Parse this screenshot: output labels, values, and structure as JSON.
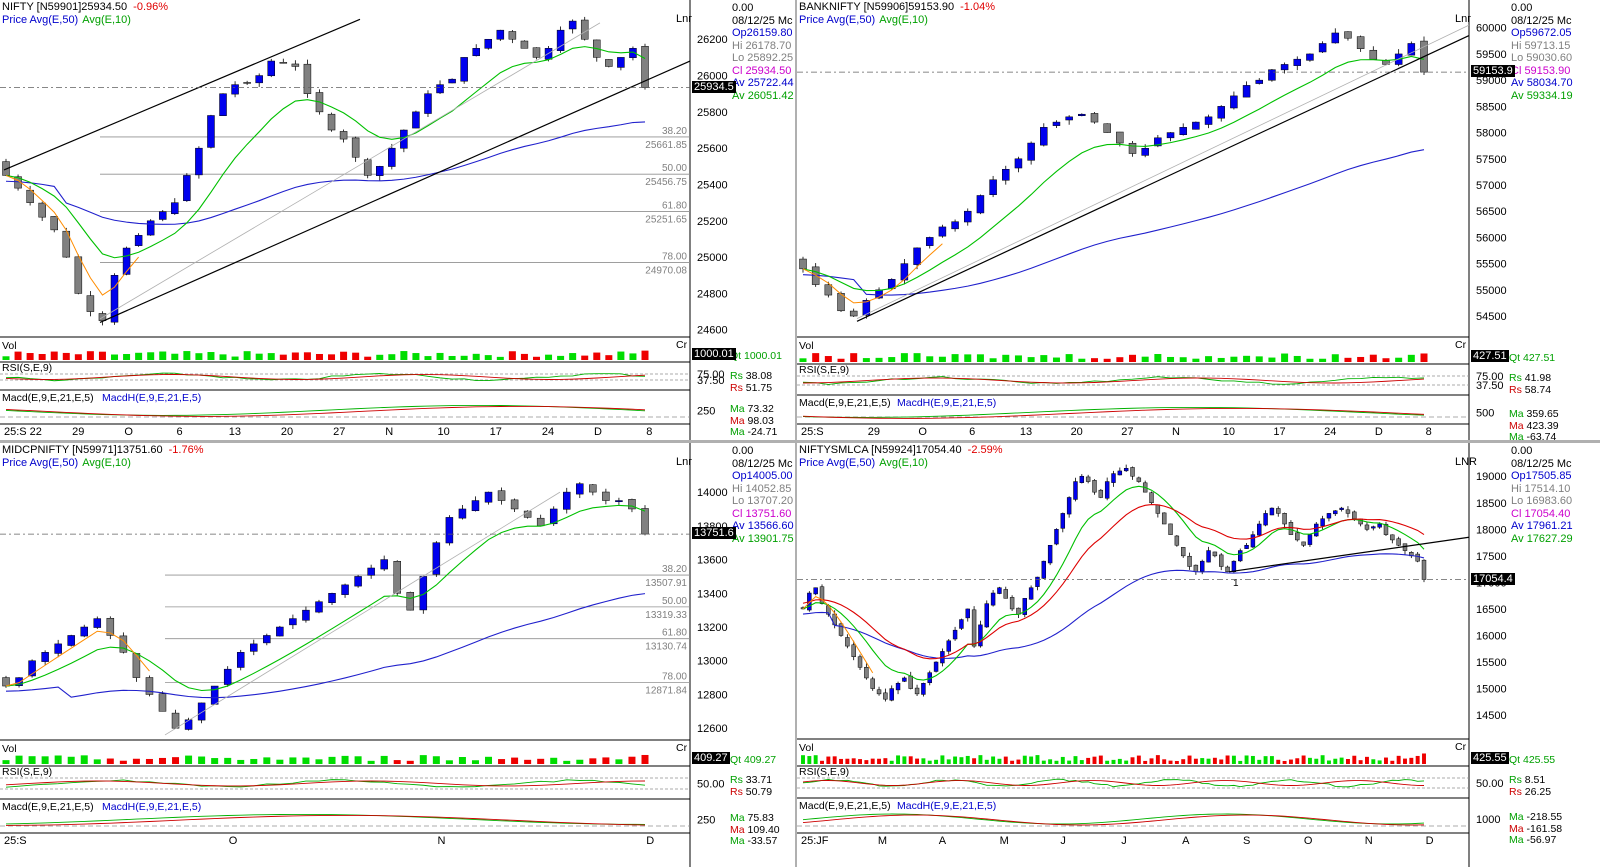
{
  "chart_data": [
    {
      "type": "candlestick",
      "symbol": "NIFTY [N59901]",
      "last": "25934.50",
      "change": "-0.96%",
      "legend": {
        "price": "Price",
        "avg50": "Avg(E,50)",
        "avg10": "Avg(E,10)"
      },
      "top_value": "0.00",
      "date": "08/12/25 Mc",
      "ohlc": {
        "op": "Op26159.80",
        "hi": "Hi 26178.70",
        "lo": "Lo 25892.25",
        "cl": "Cl 25934.50",
        "av1": "Av 25722.44",
        "av2": "Av 26051.42"
      },
      "scale_label": "Lnr",
      "y_ticks": [
        "26200",
        "26000",
        "25800",
        "25600",
        "25400",
        "25200",
        "25000",
        "24800",
        "24600"
      ],
      "ylim": [
        24560,
        26350
      ],
      "fib": [
        {
          "pct": "38.20",
          "val": "25661.85"
        },
        {
          "pct": "50.00",
          "val": "25456.75"
        },
        {
          "pct": "61.80",
          "val": "25251.65"
        },
        {
          "pct": "78.00",
          "val": "24970.08"
        }
      ],
      "price_box": "25934.5",
      "x_labels": [
        "25:S 22",
        "29",
        "O",
        "6",
        "13",
        "20",
        "27",
        "N",
        "10",
        "17",
        "24",
        "D",
        "8"
      ],
      "vol": {
        "label": "Vol",
        "cr": "Cr",
        "box": "1000.01",
        "qt": "Qt  1000.01"
      },
      "rsi": {
        "label": "RSI(S,E,9)",
        "ticks": [
          "75.00",
          "37.50"
        ],
        "rs1": "38.08",
        "rs2": "51.75"
      },
      "macd": {
        "label1": "Macd(E,9,E,21,E,5)",
        "label2": "MacdH(E,9,E,21,E,5)",
        "tick": "250",
        "ma1": "73.32",
        "ma2": "98.03",
        "ma3": "-24.71"
      },
      "closes": [
        25450,
        25380,
        25300,
        25220,
        25150,
        25000,
        24800,
        24700,
        24650,
        24900,
        25050,
        25120,
        25200,
        25250,
        25300,
        25450,
        25600,
        25780,
        25900,
        25950,
        25960,
        26000,
        26080,
        26070,
        26050,
        25900,
        25800,
        25700,
        25650,
        25550,
        25450,
        25500,
        25600,
        25700,
        25800,
        25900,
        25950,
        25980,
        26100,
        26150,
        26200,
        26250,
        26200,
        26150,
        26100,
        26150,
        26250,
        26300,
        26200,
        26100,
        26050,
        26100,
        26150,
        25934
      ]
    },
    {
      "type": "candlestick",
      "symbol": "BANKNIFTY [N59906]",
      "last": "59153.90",
      "change": "-1.04%",
      "legend": {
        "price": "Price",
        "avg50": "Avg(E,50)",
        "avg10": "Avg(E,10)"
      },
      "top_value": "0.00",
      "date": "08/12/25 Mc",
      "ohlc": {
        "op": "Op59672.05",
        "hi": "Hi 59713.15",
        "lo": "Lo 59030.60",
        "cl": "Cl 59153.90",
        "av1": "Av 58034.70",
        "av2": "Av 59334.19"
      },
      "scale_label": "Lnr",
      "y_ticks": [
        "60000",
        "59500",
        "59000",
        "58500",
        "58000",
        "57500",
        "57000",
        "56500",
        "56000",
        "55500",
        "55000",
        "54500"
      ],
      "ylim": [
        54100,
        60300
      ],
      "price_box": "59153.9",
      "x_labels": [
        "25:S",
        "29",
        "O",
        "6",
        "13",
        "20",
        "27",
        "N",
        "10",
        "17",
        "24",
        "D",
        "8"
      ],
      "vol": {
        "label": "Vol",
        "cr": "Cr",
        "box": "427.51",
        "qt": "Qt  427.51"
      },
      "rsi": {
        "label": "RSI(S,E,9)",
        "ticks": [
          "75.00",
          "37.50"
        ],
        "rs1": "41.98",
        "rs2": "58.74"
      },
      "macd": {
        "label1": "Macd(E,9,E,21,E,5)",
        "label2": "MacdH(E,9,E,21,E,5)",
        "tick": "500",
        "ma1": "359.65",
        "ma2": "423.39",
        "ma3": "-63.74"
      },
      "closes": [
        55400,
        55100,
        54900,
        54600,
        54500,
        54800,
        55000,
        55200,
        55500,
        55800,
        56000,
        56200,
        56300,
        56500,
        56800,
        57100,
        57300,
        57500,
        57800,
        58100,
        58200,
        58300,
        58350,
        58200,
        58000,
        57800,
        57600,
        57700,
        57900,
        58000,
        58100,
        58200,
        58300,
        58500,
        58700,
        58900,
        59000,
        59200,
        59300,
        59400,
        59500,
        59700,
        59900,
        59800,
        59600,
        59400,
        59300,
        59500,
        59700,
        59153
      ]
    },
    {
      "type": "candlestick",
      "symbol": "MIDCPNIFTY [N59971]",
      "last": "13751.60",
      "change": "-1.76%",
      "legend": {
        "price": "Price",
        "avg50": "Avg(E,50)",
        "avg10": "Avg(E,10)"
      },
      "top_value": "0.00",
      "date": "08/12/25 Mc",
      "ohlc": {
        "op": "Op14005.00",
        "hi": "Hi 14052.85",
        "lo": "Lo 13707.20",
        "cl": "Cl 13751.60",
        "av1": "Av 13566.60",
        "av2": "Av 13901.75"
      },
      "scale_label": "Lnr",
      "y_ticks": [
        "14000",
        "13800",
        "13600",
        "13400",
        "13200",
        "13000",
        "12800",
        "12600"
      ],
      "ylim": [
        12530,
        14220
      ],
      "fib": [
        {
          "pct": "38.20",
          "val": "13507.91"
        },
        {
          "pct": "50.00",
          "val": "13319.33"
        },
        {
          "pct": "61.80",
          "val": "13130.74"
        },
        {
          "pct": "78.00",
          "val": "12871.84"
        }
      ],
      "price_box": "13751.6",
      "x_labels": [
        "25:S",
        "O",
        "N",
        "D"
      ],
      "vol": {
        "label": "Vol",
        "cr": "Cr",
        "box": "409.27",
        "qt": "Qt  409.27"
      },
      "rsi": {
        "label": "RSI(S,E,9)",
        "ticks": [
          "50.00"
        ],
        "rs1": "33.71",
        "rs2": "50.79"
      },
      "macd": {
        "label1": "Macd(E,9,E,21,E,5)",
        "label2": "MacdH(E,9,E,21,E,5)",
        "tick": "250",
        "ma1": "75.83",
        "ma2": "109.40",
        "ma3": "-33.57"
      },
      "closes": [
        12850,
        12900,
        13000,
        13050,
        13100,
        13150,
        13200,
        13250,
        13150,
        13050,
        12900,
        12800,
        12700,
        12600,
        12650,
        12750,
        12850,
        12950,
        13050,
        13100,
        13150,
        13200,
        13250,
        13300,
        13350,
        13400,
        13450,
        13500,
        13550,
        13600,
        13400,
        13300,
        13500,
        13700,
        13850,
        13900,
        13950,
        14000,
        13950,
        13900,
        13850,
        13800,
        13900,
        14000,
        14050,
        14000,
        13950,
        13950,
        13900,
        13751
      ]
    },
    {
      "type": "candlestick",
      "symbol": "NIFTYSMLCA [N59924]",
      "last": "17054.40",
      "change": "-2.59%",
      "legend": {
        "price": "Price",
        "avg50": "Avg(E,50)",
        "avg10": "Avg(E,10)"
      },
      "top_value": "0.00",
      "date": "08/12/25 Mc",
      "ohlc": {
        "op": "Op17505.85",
        "hi": "Hi 17514.10",
        "lo": "Lo 16983.60",
        "cl": "Cl 17054.40",
        "av1": "Av 17961.21",
        "av2": "Av 17627.29"
      },
      "scale_label": "LNR",
      "y_ticks": [
        "19000",
        "18500",
        "18000",
        "17500",
        "17000",
        "16500",
        "16000",
        "15500",
        "15000",
        "14500"
      ],
      "ylim": [
        14050,
        19400
      ],
      "price_box": "17054.4",
      "trend_mark": "1",
      "x_labels": [
        "25:JF",
        "M",
        "A",
        "M",
        "J",
        "J",
        "A",
        "S",
        "O",
        "N",
        "D"
      ],
      "vol": {
        "label": "Vol",
        "cr": "Cr",
        "box": "425.55",
        "qt": "Qt  425.55"
      },
      "rsi": {
        "label": "RSI(S,E,9)",
        "ticks": [
          "50.00"
        ],
        "rs1": "8.51",
        "rs2": "26.25"
      },
      "macd": {
        "label1": "Macd(E,9,E,21,E,5)",
        "label2": "MacdH(E,9,E,21,E,5)",
        "tick": "1000",
        "ma1": "-218.55",
        "ma2": "-161.58",
        "ma3": "-56.97"
      },
      "closes": [
        16500,
        16800,
        16900,
        16600,
        16400,
        16200,
        16000,
        15800,
        15600,
        15400,
        15200,
        15000,
        14900,
        14800,
        15000,
        15100,
        15200,
        15000,
        14900,
        15100,
        15300,
        15500,
        15700,
        15900,
        16100,
        16300,
        16500,
        15800,
        16200,
        16600,
        16800,
        16900,
        16700,
        16500,
        16400,
        16700,
        16900,
        17100,
        17400,
        17700,
        18000,
        18300,
        18600,
        18900,
        19000,
        18900,
        18700,
        18600,
        18900,
        19050,
        19100,
        19150,
        19000,
        18900,
        18700,
        18500,
        18300,
        18100,
        17900,
        17700,
        17500,
        17300,
        17200,
        17400,
        17600,
        17500,
        17300,
        17200,
        17400,
        17600,
        17700,
        17900,
        18100,
        18300,
        18400,
        18300,
        18100,
        17900,
        17800,
        17700,
        17900,
        18100,
        18200,
        18300,
        18350,
        18400,
        18300,
        18200,
        18100,
        18000,
        18050,
        18100,
        17900,
        17800,
        17700,
        17600,
        17500,
        17400,
        17054
      ]
    }
  ]
}
